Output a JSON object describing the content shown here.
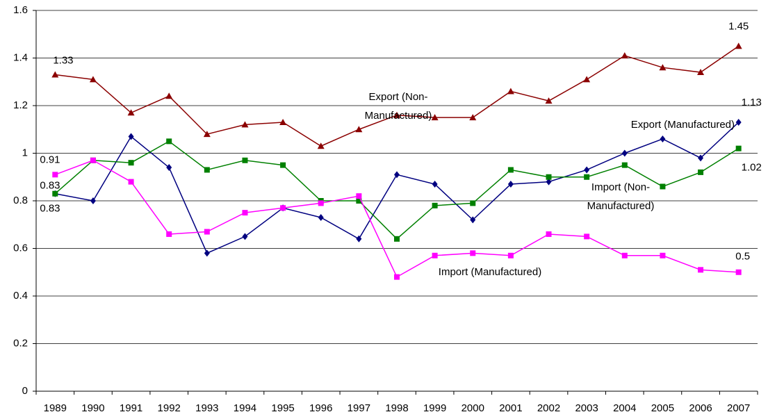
{
  "chart_data": {
    "type": "line",
    "categories": [
      "1989",
      "1990",
      "1991",
      "1992",
      "1993",
      "1994",
      "1995",
      "1996",
      "1997",
      "1998",
      "1999",
      "2000",
      "2001",
      "2002",
      "2003",
      "2004",
      "2005",
      "2006",
      "2007"
    ],
    "ylim": [
      0,
      1.6
    ],
    "yticks": [
      0,
      0.2,
      0.4,
      0.6,
      0.8,
      1,
      1.2,
      1.4,
      1.6
    ],
    "grid": true,
    "series": [
      {
        "name": "Export (Non-Manufactured)",
        "color": "#8b0000",
        "marker": "triangle",
        "values": [
          1.33,
          1.31,
          1.17,
          1.24,
          1.08,
          1.12,
          1.13,
          1.03,
          1.1,
          1.16,
          1.15,
          1.15,
          1.26,
          1.22,
          1.31,
          1.41,
          1.36,
          1.34,
          1.45
        ],
        "value_labels": [
          "1.33",
          null,
          null,
          null,
          null,
          null,
          null,
          null,
          null,
          null,
          null,
          null,
          null,
          null,
          null,
          null,
          null,
          null,
          "1.45"
        ]
      },
      {
        "name": "Export (Manufactured)",
        "color": "#000080",
        "marker": "diamond",
        "values": [
          0.83,
          0.8,
          1.07,
          0.94,
          0.58,
          0.65,
          0.77,
          0.73,
          0.64,
          0.91,
          0.87,
          0.72,
          0.87,
          0.88,
          0.93,
          1.0,
          1.06,
          0.98,
          1.13
        ],
        "value_labels": [
          "0.83",
          null,
          null,
          null,
          null,
          null,
          null,
          null,
          null,
          null,
          null,
          null,
          null,
          null,
          null,
          null,
          null,
          null,
          "1.13"
        ]
      },
      {
        "name": "Import (Non-Manufactured)",
        "color": "#008000",
        "marker": "square",
        "values": [
          0.83,
          0.97,
          0.96,
          1.05,
          0.93,
          0.97,
          0.95,
          0.8,
          0.8,
          0.64,
          0.78,
          0.79,
          0.93,
          0.9,
          0.9,
          0.95,
          0.86,
          0.92,
          1.02
        ],
        "value_labels": [
          "0.83",
          null,
          null,
          null,
          null,
          null,
          null,
          null,
          null,
          null,
          null,
          null,
          null,
          null,
          null,
          null,
          null,
          null,
          "1.02"
        ]
      },
      {
        "name": "Import (Manufactured)",
        "color": "#ff00ff",
        "marker": "square",
        "values": [
          0.91,
          0.97,
          0.88,
          0.66,
          0.67,
          0.75,
          0.77,
          0.79,
          0.82,
          0.48,
          0.57,
          0.58,
          0.57,
          0.66,
          0.65,
          0.57,
          0.57,
          0.51,
          0.5
        ],
        "value_labels": [
          "0.91",
          null,
          null,
          null,
          null,
          null,
          null,
          null,
          null,
          null,
          null,
          null,
          null,
          null,
          null,
          null,
          null,
          null,
          "0.5"
        ]
      }
    ]
  }
}
